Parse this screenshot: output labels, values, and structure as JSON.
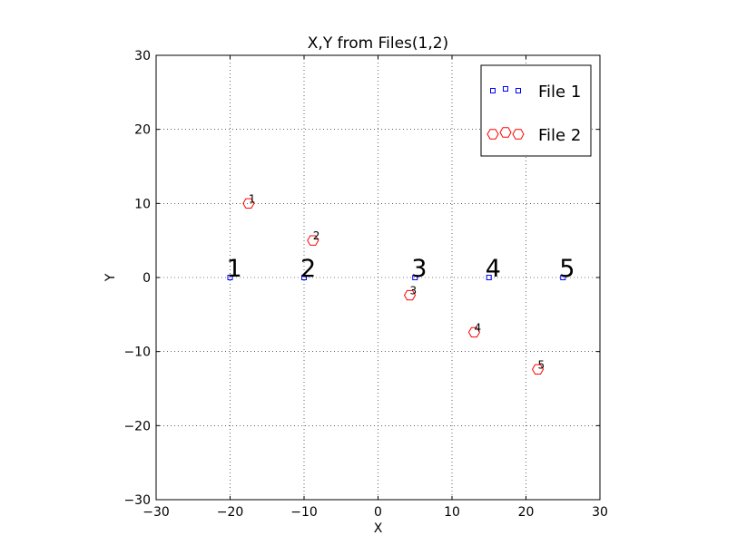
{
  "chart_data": {
    "type": "scatter",
    "title": "X,Y from Files(1,2)",
    "xlabel": "X",
    "ylabel": "Y",
    "xlim": [
      -30,
      30
    ],
    "ylim": [
      -30,
      30
    ],
    "xticks": [
      -30,
      -20,
      -10,
      0,
      10,
      20,
      30
    ],
    "yticks": [
      -30,
      -20,
      -10,
      0,
      10,
      20,
      30
    ],
    "xtick_labels": [
      "−30",
      "−20",
      "−10",
      "0",
      "10",
      "20",
      "30"
    ],
    "ytick_labels": [
      "−30",
      "−20",
      "−10",
      "0",
      "10",
      "20",
      "30"
    ],
    "grid": true,
    "legend_position": "top-right",
    "series": [
      {
        "name": "File 1",
        "marker": "square",
        "color": "#0000ff",
        "x": [
          -20,
          -10,
          5,
          15,
          25
        ],
        "y": [
          0,
          0,
          0,
          0,
          0
        ],
        "labels": [
          "1",
          "2",
          "3",
          "4",
          "5"
        ]
      },
      {
        "name": "File 2",
        "marker": "hexagon",
        "color": "#ff0000",
        "x": [
          -17.5,
          -8.8,
          4.3,
          13,
          21.6
        ],
        "y": [
          10,
          5,
          -2.4,
          -7.4,
          -12.4
        ],
        "labels": [
          "1",
          "2",
          "3",
          "4",
          "5"
        ]
      }
    ]
  }
}
